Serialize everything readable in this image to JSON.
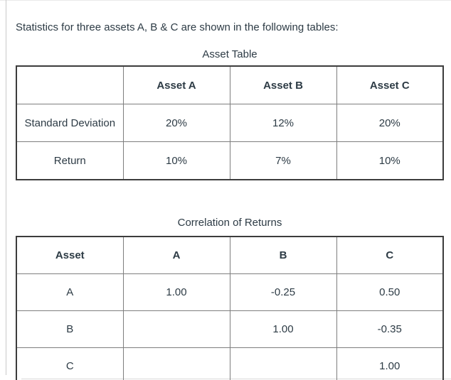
{
  "colors": {
    "text": "#2d3b45",
    "outer_border": "#3c3c3c",
    "inner_border": "#7e7e7e",
    "frame_line": "#c9c9c9"
  },
  "question": {
    "intro_text": "Statistics for three assets A, B & C are shown in the following tables:"
  },
  "asset_table": {
    "title": "Asset Table",
    "headers": [
      "",
      "Asset A",
      "Asset B",
      "Asset C"
    ],
    "rows": [
      {
        "label": "Standard Deviation",
        "cells": [
          "20%",
          "12%",
          "20%"
        ]
      },
      {
        "label": "Return",
        "cells": [
          "10%",
          "7%",
          "10%"
        ]
      }
    ]
  },
  "correlation_table": {
    "title": "Correlation of Returns",
    "headers": [
      "Asset",
      "A",
      "B",
      "C"
    ],
    "rows": [
      {
        "label": "A",
        "cells": [
          "1.00",
          "-0.25",
          "0.50"
        ]
      },
      {
        "label": "B",
        "cells": [
          "",
          "1.00",
          "-0.35"
        ]
      },
      {
        "label": "C",
        "cells": [
          "",
          "",
          "1.00"
        ]
      }
    ]
  }
}
